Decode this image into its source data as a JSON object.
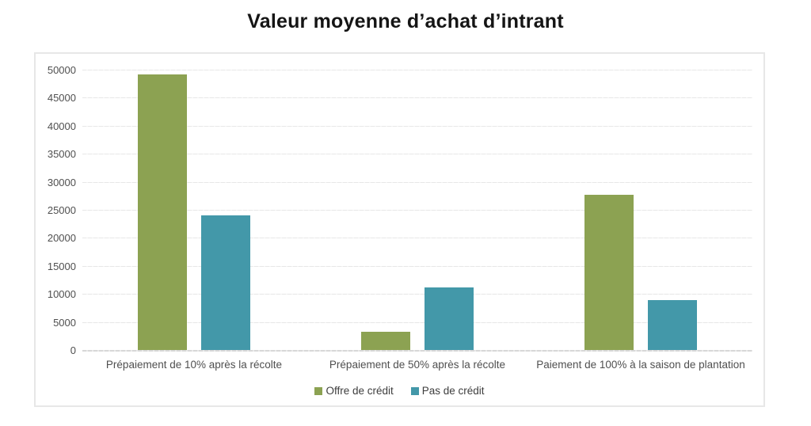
{
  "chart_data": {
    "type": "bar",
    "title": "Valeur moyenne d’achat d’intrant",
    "categories": [
      "Prépaiement de 10% après la récolte",
      "Prépaiement de 50% après la récolte",
      "Paiement de 100% à la saison de plantation"
    ],
    "series": [
      {
        "name": "Offre de crédit",
        "color": "#8CA252",
        "values": [
          49200,
          3300,
          27700
        ]
      },
      {
        "name": "Pas de crédit",
        "color": "#4398A9",
        "values": [
          24000,
          11200,
          8900
        ]
      }
    ],
    "ylim": [
      0,
      50000
    ],
    "yticks": [
      0,
      5000,
      10000,
      15000,
      20000,
      25000,
      30000,
      35000,
      40000,
      45000,
      50000
    ],
    "xlabel": "",
    "ylabel": "",
    "grid": "horizontal",
    "legend_position": "bottom"
  }
}
